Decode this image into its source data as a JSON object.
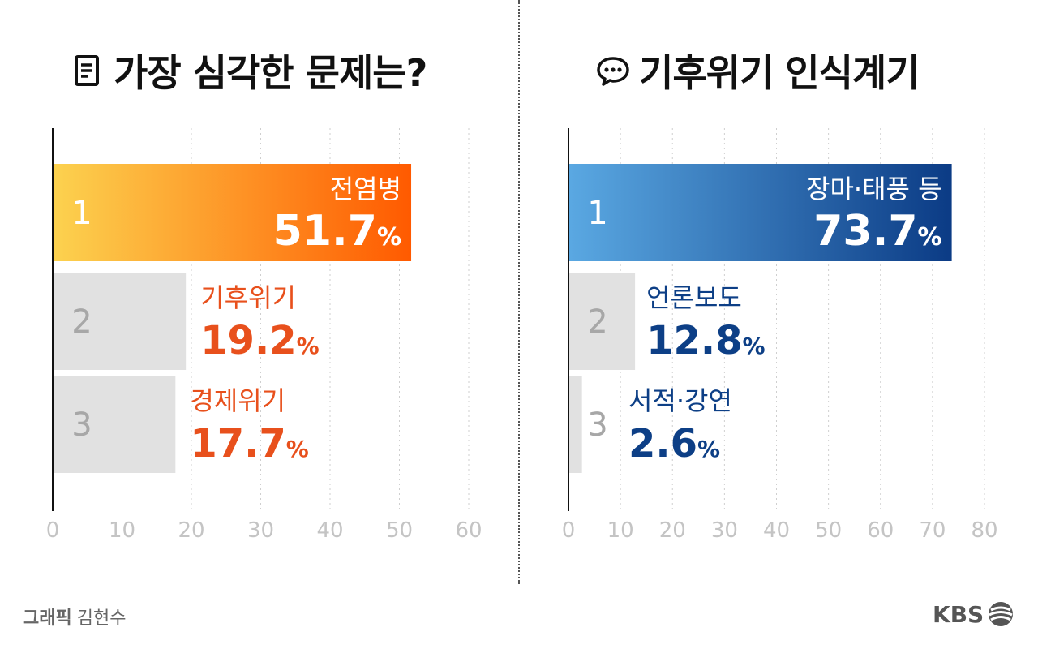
{
  "left_panel": {
    "title": "가장 심각한 문제는?",
    "icon": "document-icon",
    "accent": "#e8501c"
  },
  "right_panel": {
    "title": "기후위기 인식계기",
    "icon": "speech-bubble-icon",
    "accent": "#0d3f86"
  },
  "credit": {
    "label": "그래픽",
    "name": "김현수"
  },
  "logo": {
    "text": "KBS"
  },
  "chart_data": [
    {
      "type": "bar",
      "orientation": "horizontal",
      "categories": [
        "전염병",
        "기후위기",
        "경제위기"
      ],
      "ranks": [
        "1",
        "2",
        "3"
      ],
      "values": [
        51.7,
        19.2,
        17.7
      ],
      "value_labels": [
        "51.7",
        "19.2",
        "17.7"
      ],
      "unit": "%",
      "xlim": [
        0,
        60
      ],
      "x_ticks": [
        "0",
        "10",
        "20",
        "30",
        "40",
        "50",
        "60"
      ],
      "grid": true,
      "top_bar_colors": [
        "#fcd24f",
        "#ff5a00"
      ],
      "label_color": "#e8501c"
    },
    {
      "type": "bar",
      "orientation": "horizontal",
      "categories": [
        "장마·태풍 등",
        "언론보도",
        "서적·강연"
      ],
      "ranks": [
        "1",
        "2",
        "3"
      ],
      "values": [
        73.7,
        12.8,
        2.6
      ],
      "value_labels": [
        "73.7",
        "12.8",
        "2.6"
      ],
      "unit": "%",
      "xlim": [
        0,
        80
      ],
      "x_ticks": [
        "0",
        "10",
        "20",
        "30",
        "40",
        "50",
        "60",
        "70",
        "80"
      ],
      "grid": true,
      "top_bar_colors": [
        "#5aa8e2",
        "#0b3b85"
      ],
      "label_color": "#0d3f86"
    }
  ]
}
